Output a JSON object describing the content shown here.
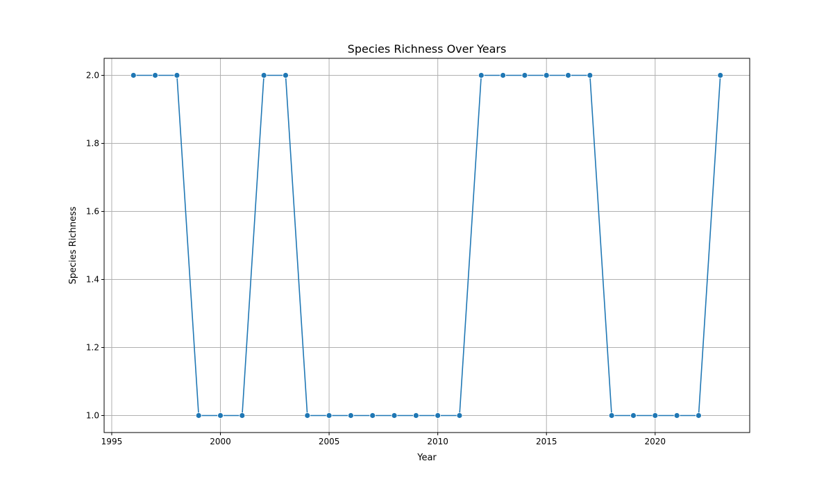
{
  "chart_data": {
    "type": "line",
    "title": "Species Richness Over Years",
    "xlabel": "Year",
    "ylabel": "Species Richness",
    "xlim": [
      1994.65,
      2024.35
    ],
    "ylim": [
      0.95,
      2.05
    ],
    "xticks": [
      1995,
      2000,
      2005,
      2010,
      2015,
      2020
    ],
    "yticks": [
      1.0,
      1.2,
      1.4,
      1.6,
      1.8,
      2.0
    ],
    "grid": true,
    "series": [
      {
        "color": "#1f77b4",
        "marker": "circle",
        "x": [
          1996,
          1997,
          1998,
          1999,
          2000,
          2001,
          2002,
          2003,
          2004,
          2005,
          2006,
          2007,
          2008,
          2009,
          2010,
          2011,
          2012,
          2013,
          2014,
          2015,
          2016,
          2017,
          2018,
          2019,
          2020,
          2021,
          2022,
          2023
        ],
        "values": [
          2,
          2,
          2,
          1,
          1,
          1,
          2,
          2,
          1,
          1,
          1,
          1,
          1,
          1,
          1,
          1,
          2,
          2,
          2,
          2,
          2,
          2,
          1,
          1,
          1,
          1,
          1,
          2
        ]
      }
    ]
  }
}
